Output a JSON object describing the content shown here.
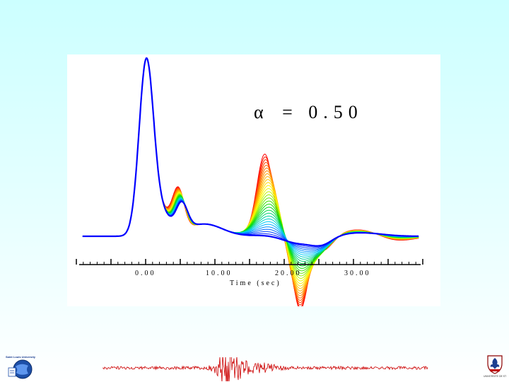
{
  "annotation": {
    "symbol": "α",
    "text": "= 0.50"
  },
  "chart_data": {
    "type": "line",
    "title": "",
    "xlabel": "Time (sec)",
    "ylabel": "",
    "xlim": [
      -10,
      40
    ],
    "x_ticks": [
      0,
      10,
      20,
      30
    ],
    "x_tick_labels": [
      "0.00",
      "10.00",
      "20.00",
      "30.00"
    ],
    "grid": false,
    "legend": "none",
    "color_scale": [
      "#ff0000",
      "#ff8800",
      "#ffff00",
      "#00dd00",
      "#00ccff",
      "#0000ff"
    ],
    "series_description_count": 30,
    "curve_family_peaks": {
      "main_peak": {
        "x": 0.1,
        "y": 1.0
      },
      "second_peak_red": {
        "x": 4.7,
        "y": 0.4
      },
      "second_peak_blue": {
        "x": 5.2,
        "y": 0.3
      },
      "third_peak_red": {
        "x": 17.2,
        "y": 0.47
      },
      "trough_red": {
        "x": 22.3,
        "y": -0.41
      },
      "baseline": 0.0
    }
  },
  "footer": {
    "logo_left_name": "Saint Louis University",
    "logo_right_name": "UNIVERSITE DE STRASBOURG"
  }
}
